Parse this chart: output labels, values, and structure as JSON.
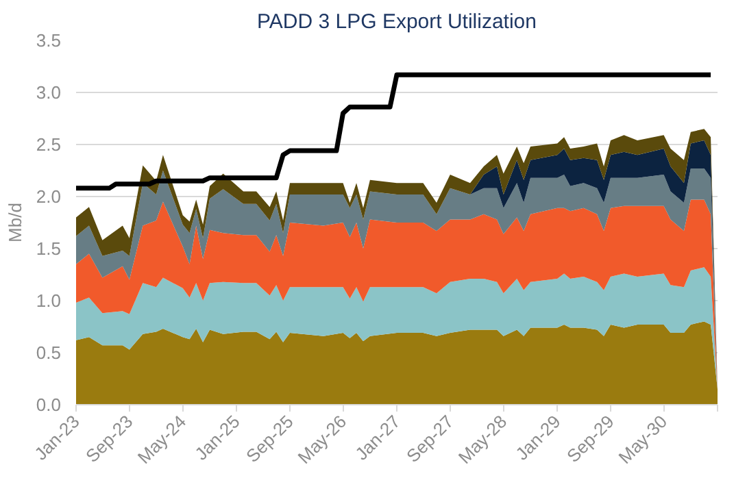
{
  "chart_data": {
    "type": "area",
    "stacked": true,
    "title": "PADD 3 LPG Export Utilization",
    "ylabel": "Mb/d",
    "x": [
      "2023-01",
      "2023-03",
      "2023-05",
      "2023-08",
      "2023-09",
      "2023-11",
      "2024-01",
      "2024-02",
      "2024-05",
      "2024-06",
      "2024-07",
      "2024-08",
      "2024-09",
      "2024-11",
      "2025-02",
      "2025-04",
      "2025-06",
      "2025-07",
      "2025-08",
      "2025-09",
      "2026-02",
      "2026-05",
      "2026-06",
      "2026-07",
      "2026-08",
      "2026-09",
      "2027-01",
      "2027-05",
      "2027-07",
      "2027-09",
      "2027-12",
      "2028-02",
      "2028-04",
      "2028-05",
      "2028-07",
      "2028-08",
      "2028-09",
      "2029-01",
      "2029-02",
      "2029-03",
      "2029-05",
      "2029-07",
      "2029-08",
      "2029-09",
      "2029-11",
      "2030-01",
      "2030-05",
      "2030-06",
      "2030-08",
      "2030-09",
      "2030-11",
      "2030-12",
      "2031-01"
    ],
    "series": [
      {
        "color": "#9a7b0f",
        "values": [
          0.62,
          0.65,
          0.57,
          0.57,
          0.53,
          0.68,
          0.7,
          0.73,
          0.65,
          0.63,
          0.73,
          0.6,
          0.72,
          0.68,
          0.7,
          0.7,
          0.63,
          0.7,
          0.6,
          0.69,
          0.66,
          0.69,
          0.64,
          0.69,
          0.61,
          0.66,
          0.69,
          0.69,
          0.66,
          0.69,
          0.72,
          0.72,
          0.72,
          0.66,
          0.72,
          0.66,
          0.74,
          0.74,
          0.77,
          0.74,
          0.74,
          0.72,
          0.66,
          0.77,
          0.74,
          0.77,
          0.77,
          0.69,
          0.69,
          0.77,
          0.8,
          0.77,
          0.15
        ]
      },
      {
        "color": "#8bc4c7",
        "values": [
          0.36,
          0.38,
          0.31,
          0.33,
          0.34,
          0.49,
          0.43,
          0.49,
          0.47,
          0.4,
          0.44,
          0.4,
          0.45,
          0.5,
          0.47,
          0.47,
          0.42,
          0.45,
          0.4,
          0.44,
          0.47,
          0.44,
          0.38,
          0.44,
          0.38,
          0.47,
          0.44,
          0.44,
          0.41,
          0.49,
          0.49,
          0.49,
          0.46,
          0.41,
          0.49,
          0.44,
          0.44,
          0.47,
          0.49,
          0.47,
          0.49,
          0.46,
          0.44,
          0.46,
          0.52,
          0.46,
          0.49,
          0.46,
          0.44,
          0.52,
          0.52,
          0.46,
          0
        ]
      },
      {
        "color": "#f15a2b",
        "values": [
          0.37,
          0.42,
          0.34,
          0.43,
          0.33,
          0.55,
          0.64,
          0.73,
          0.4,
          0.32,
          0.55,
          0.4,
          0.51,
          0.47,
          0.46,
          0.46,
          0.42,
          0.48,
          0.43,
          0.62,
          0.59,
          0.62,
          0.59,
          0.62,
          0.51,
          0.65,
          0.62,
          0.62,
          0.6,
          0.6,
          0.57,
          0.62,
          0.6,
          0.57,
          0.59,
          0.57,
          0.65,
          0.68,
          0.63,
          0.65,
          0.66,
          0.65,
          0.57,
          0.66,
          0.65,
          0.68,
          0.65,
          0.63,
          0.54,
          0.68,
          0.65,
          0.6,
          0
        ]
      },
      {
        "color": "#677d85",
        "values": [
          0.27,
          0.27,
          0.21,
          0.15,
          0.23,
          0.41,
          0.25,
          0.3,
          0.21,
          0.3,
          0.16,
          0.2,
          0.3,
          0.42,
          0.3,
          0.3,
          0.3,
          0.3,
          0.22,
          0.27,
          0.3,
          0.27,
          0.28,
          0.27,
          0.28,
          0.27,
          0.27,
          0.27,
          0.16,
          0.3,
          0.24,
          0.25,
          0.3,
          0.25,
          0.33,
          0.27,
          0.35,
          0.29,
          0.32,
          0.24,
          0.24,
          0.25,
          0.27,
          0.29,
          0.27,
          0.27,
          0.3,
          0.27,
          0.27,
          0.3,
          0.3,
          0.35,
          0
        ]
      },
      {
        "color": "#0c2340",
        "values": [
          0,
          0,
          0,
          0,
          0,
          0,
          0,
          0,
          0,
          0,
          0,
          0,
          0,
          0,
          0,
          0,
          0,
          0,
          0,
          0,
          0,
          0,
          0,
          0,
          0,
          0,
          0,
          0,
          0,
          0,
          0,
          0.13,
          0.21,
          0.13,
          0.22,
          0.22,
          0.17,
          0.22,
          0.25,
          0.25,
          0.24,
          0.27,
          0.22,
          0.22,
          0.25,
          0.22,
          0.25,
          0.24,
          0.19,
          0.24,
          0.27,
          0.22,
          0
        ]
      },
      {
        "color": "#5a4a0c",
        "values": [
          0.18,
          0.18,
          0.15,
          0.24,
          0.17,
          0.17,
          0.13,
          0.15,
          0.09,
          0.11,
          0.09,
          0.13,
          0.12,
          0.15,
          0.12,
          0.12,
          0.13,
          0.12,
          0.12,
          0.11,
          0.11,
          0.11,
          0.05,
          0.11,
          0.11,
          0.11,
          0.11,
          0.11,
          0.11,
          0.13,
          0.11,
          0.08,
          0.11,
          0.2,
          0.13,
          0.16,
          0.13,
          0.11,
          0.11,
          0.11,
          0.11,
          0.16,
          0.13,
          0.14,
          0.16,
          0.14,
          0.13,
          0.17,
          0.22,
          0.11,
          0.11,
          0.17,
          0
        ]
      },
      {
        "type": "line",
        "color": "#000000",
        "x": [
          "2023-01",
          "2023-06",
          "2023-07",
          "2023-12",
          "2024-01",
          "2024-08",
          "2024-09",
          "2025-07",
          "2025-08",
          "2025-09",
          "2026-04",
          "2026-05",
          "2026-06",
          "2026-12",
          "2027-01",
          "2030-12"
        ],
        "values": [
          2.08,
          2.08,
          2.12,
          2.12,
          2.15,
          2.15,
          2.18,
          2.18,
          2.4,
          2.44,
          2.44,
          2.8,
          2.86,
          2.86,
          3.17,
          3.17
        ]
      }
    ],
    "xlim": [
      "2023-01",
      "2031-01"
    ],
    "xticks": [
      {
        "value": "2023-01",
        "label": "Jan-23"
      },
      {
        "value": "2023-09",
        "label": "Sep-23"
      },
      {
        "value": "2024-05",
        "label": "May-24"
      },
      {
        "value": "2025-01",
        "label": "Jan-25"
      },
      {
        "value": "2025-09",
        "label": "Sep-25"
      },
      {
        "value": "2026-05",
        "label": "May-26"
      },
      {
        "value": "2027-01",
        "label": "Jan-27"
      },
      {
        "value": "2027-09",
        "label": "Sep-27"
      },
      {
        "value": "2028-05",
        "label": "May-28"
      },
      {
        "value": "2029-01",
        "label": "Jan-29"
      },
      {
        "value": "2029-09",
        "label": "Sep-29"
      },
      {
        "value": "2030-05",
        "label": "May-30"
      },
      {
        "value": "2031-01",
        "label": null
      }
    ],
    "ylim": [
      0,
      3.5
    ],
    "yticks": [
      {
        "value": 0,
        "label": "0.0"
      },
      {
        "value": 0.5,
        "label": "0.5"
      },
      {
        "value": 1,
        "label": "1.0"
      },
      {
        "value": 1.5,
        "label": "1.5"
      },
      {
        "value": 2,
        "label": "2.0"
      },
      {
        "value": 2.5,
        "label": "2.5"
      },
      {
        "value": 3,
        "label": "3.0"
      },
      {
        "value": 3.5,
        "label": "3.5"
      }
    ],
    "grid": "y"
  }
}
